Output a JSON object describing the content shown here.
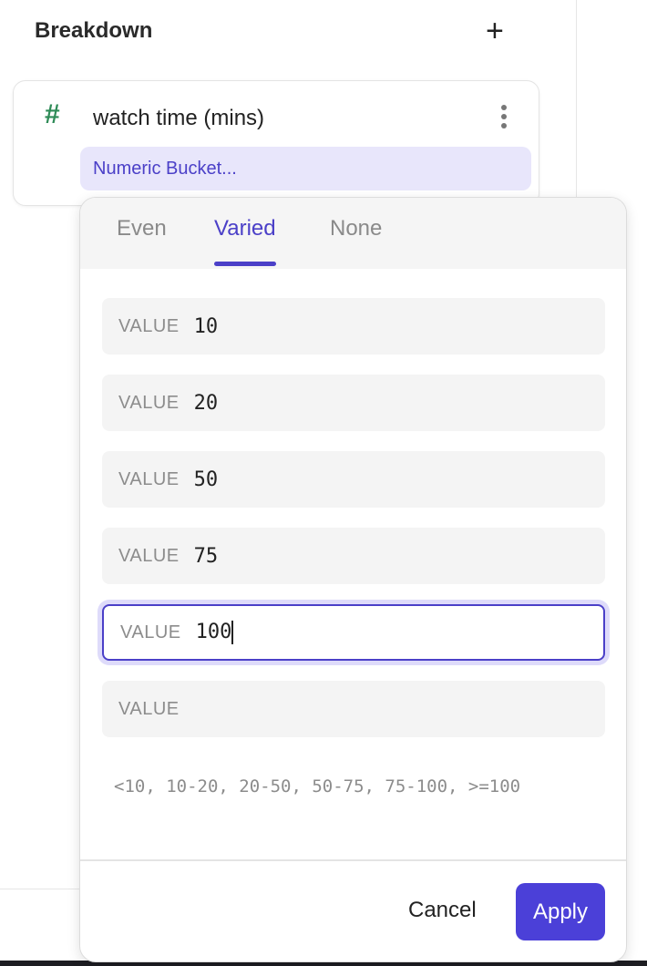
{
  "header": {
    "title": "Breakdown",
    "add_icon": "+"
  },
  "breakdown_item": {
    "icon": "#",
    "field": "watch time (mins)",
    "bucket_label": "Numeric Bucket..."
  },
  "popup": {
    "tabs": [
      {
        "label": "Even"
      },
      {
        "label": "Varied",
        "active": true
      },
      {
        "label": "None"
      }
    ],
    "inputs": [
      {
        "label": "VALUE",
        "value": "10"
      },
      {
        "label": "VALUE",
        "value": "20"
      },
      {
        "label": "VALUE",
        "value": "50"
      },
      {
        "label": "VALUE",
        "value": "75"
      },
      {
        "label": "VALUE",
        "value": "100",
        "focused": true
      },
      {
        "label": "VALUE",
        "value": ""
      }
    ],
    "summary": "<10, 10-20, 20-50, 50-75, 75-100, >=100",
    "cancel_label": "Cancel",
    "apply_label": "Apply"
  },
  "colors": {
    "accent": "#4b40d8",
    "bucket_bg": "#e8e6fb",
    "hash": "#2e8b57"
  }
}
